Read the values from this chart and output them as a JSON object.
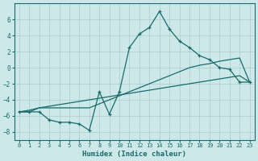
{
  "xlabel": "Humidex (Indice chaleur)",
  "bg_color": "#cce8e8",
  "grid_color": "#aacccc",
  "line_color": "#1a6b6b",
  "xlim": [
    -0.5,
    23.5
  ],
  "ylim": [
    -9,
    8
  ],
  "xticks": [
    0,
    1,
    2,
    3,
    4,
    5,
    6,
    7,
    8,
    9,
    10,
    11,
    12,
    13,
    14,
    15,
    16,
    17,
    18,
    19,
    20,
    21,
    22,
    23
  ],
  "yticks": [
    -8,
    -6,
    -4,
    -2,
    0,
    2,
    4,
    6
  ],
  "series1_x": [
    0,
    1,
    2,
    3,
    4,
    5,
    6,
    7,
    8,
    9,
    10,
    11,
    12,
    13,
    14,
    15,
    16,
    17,
    18,
    19,
    20,
    21,
    22,
    23
  ],
  "series1_y": [
    -5.5,
    -5.5,
    -5.0,
    -5.0,
    -5.0,
    -5.0,
    -5.0,
    -5.0,
    -4.5,
    -4.0,
    -3.5,
    -3.0,
    -2.5,
    -2.0,
    -1.5,
    -1.0,
    -0.5,
    0.0,
    0.3,
    0.5,
    0.8,
    1.0,
    1.2,
    -1.8
  ],
  "series2_x": [
    0,
    1,
    2,
    3,
    4,
    5,
    6,
    7,
    8,
    9,
    10,
    11,
    12,
    13,
    14,
    15,
    16,
    17,
    18,
    19,
    20,
    21,
    22,
    23
  ],
  "series2_y": [
    -5.5,
    -5.5,
    -5.5,
    -6.5,
    -6.8,
    -6.8,
    -7.0,
    -7.8,
    -3.0,
    -5.8,
    -3.0,
    2.5,
    4.2,
    5.0,
    7.0,
    4.8,
    3.3,
    2.5,
    1.5,
    1.0,
    0.0,
    -0.2,
    -1.8,
    -1.8
  ],
  "series3_x": [
    0,
    1,
    2,
    3,
    4,
    5,
    6,
    7,
    8,
    9,
    10,
    11,
    12,
    13,
    14,
    15,
    16,
    17,
    18,
    19,
    20,
    21,
    22,
    23
  ],
  "series3_y": [
    -5.5,
    -5.3,
    -5.0,
    -4.8,
    -4.6,
    -4.4,
    -4.2,
    -4.0,
    -3.8,
    -3.6,
    -3.4,
    -3.2,
    -3.0,
    -2.8,
    -2.6,
    -2.4,
    -2.2,
    -2.0,
    -1.8,
    -1.6,
    -1.4,
    -1.2,
    -1.0,
    -1.8
  ]
}
